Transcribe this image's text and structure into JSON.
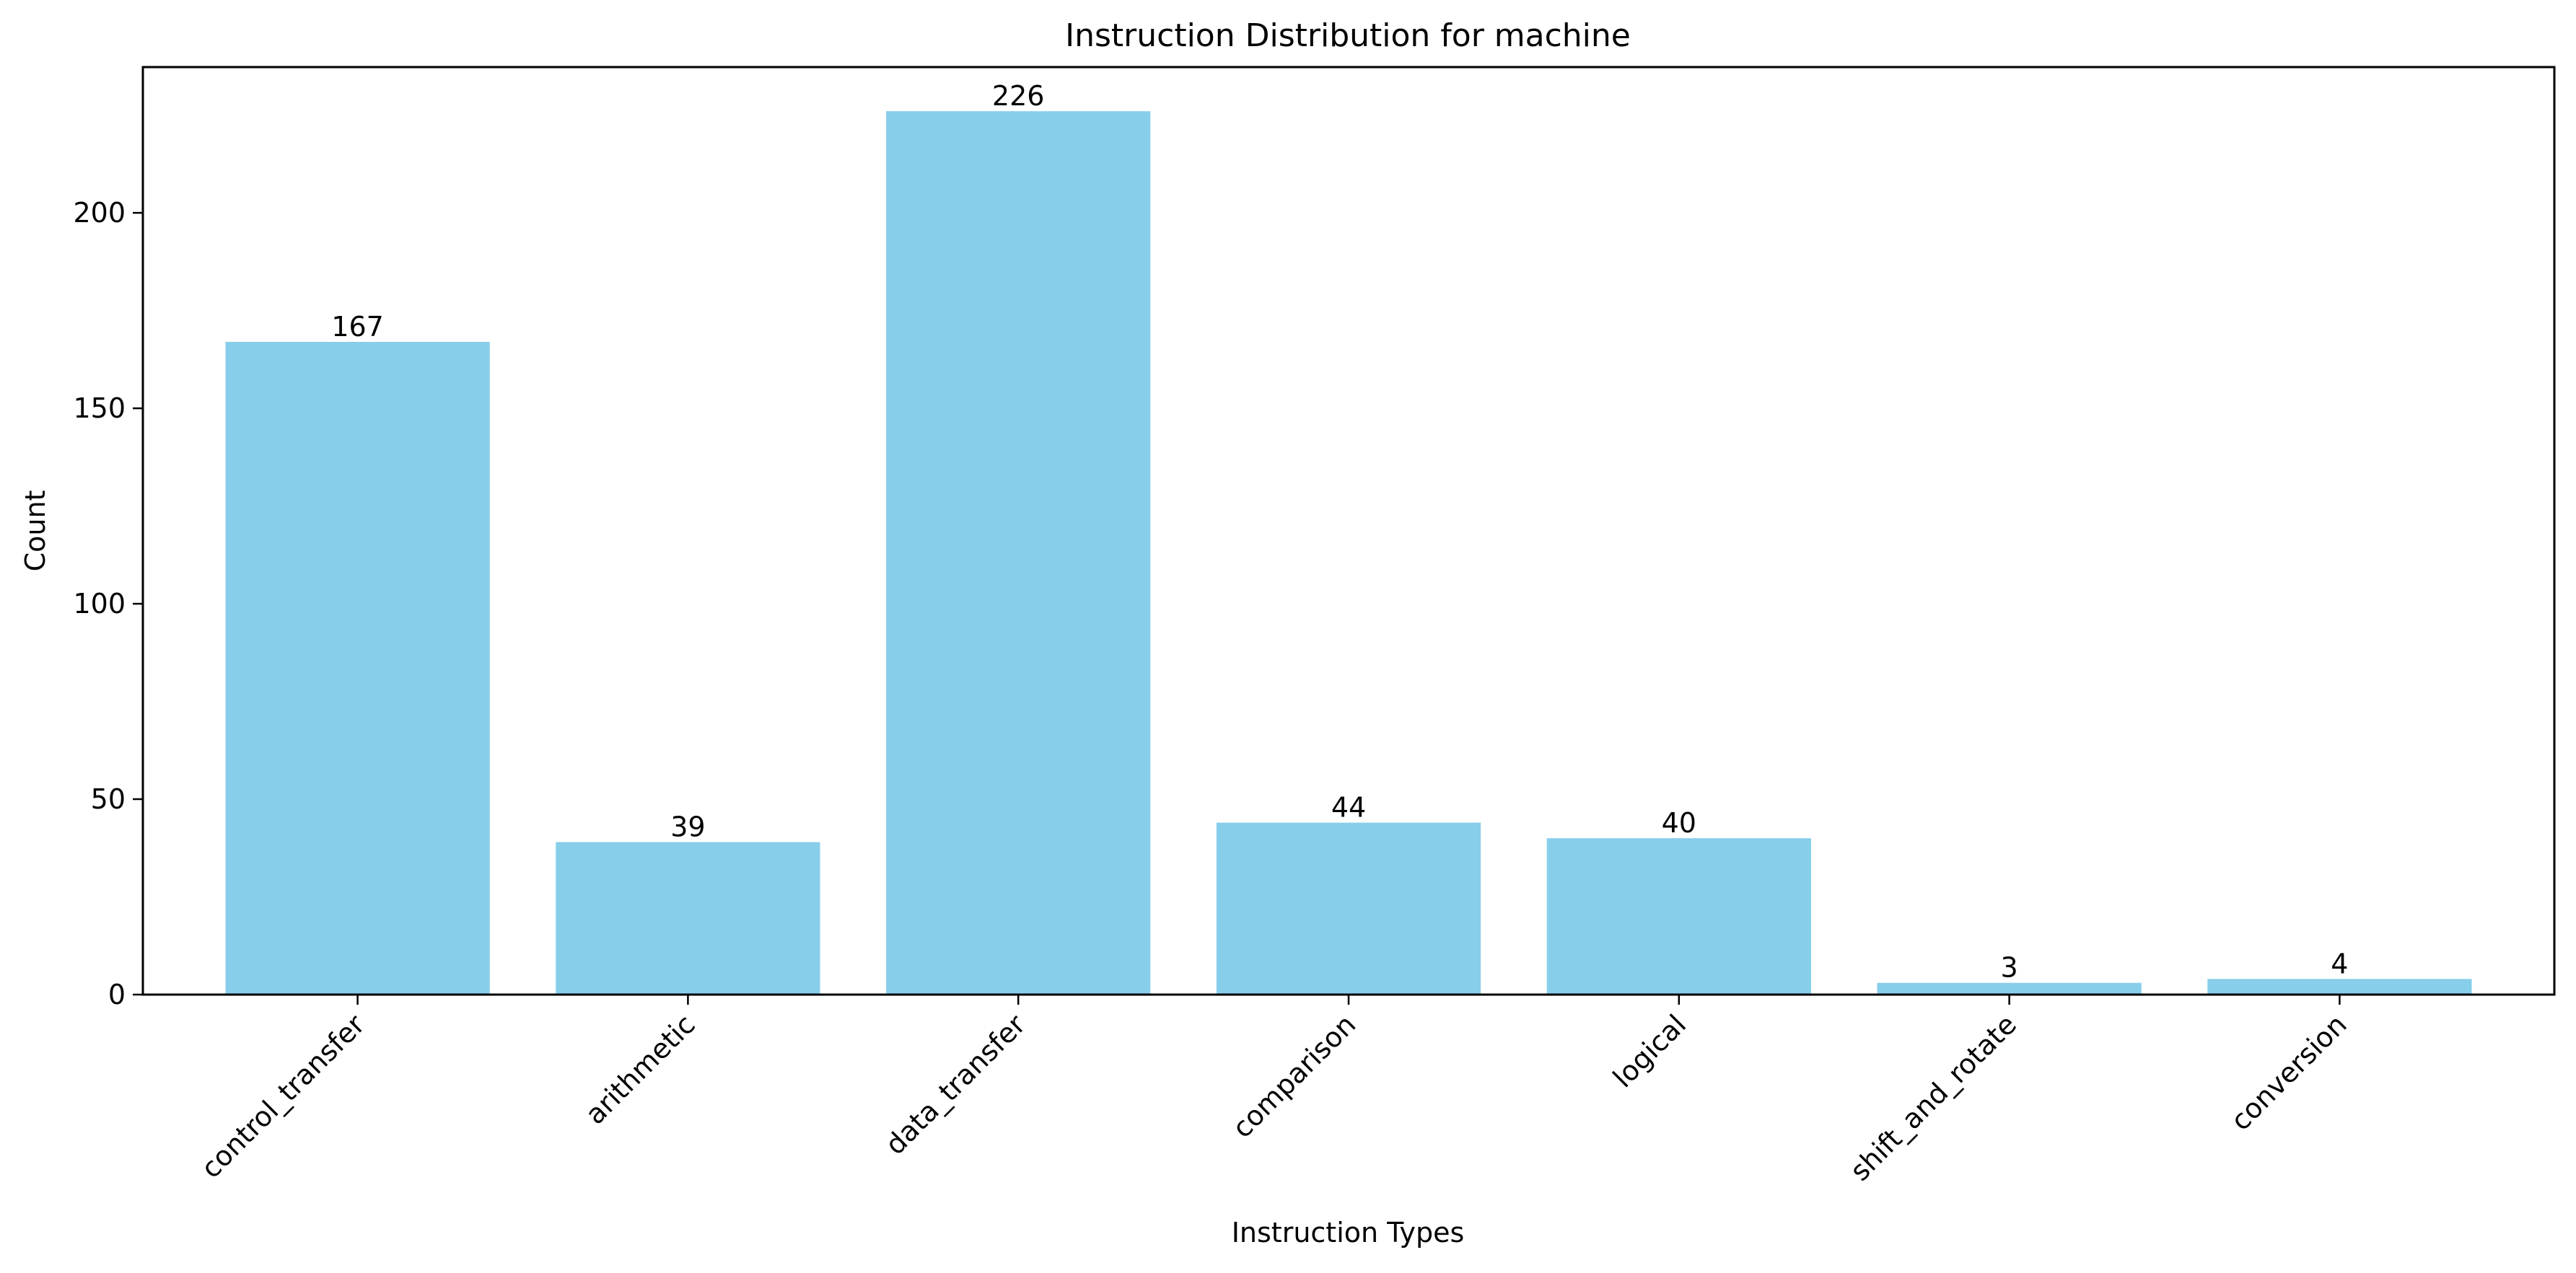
{
  "chart_data": {
    "type": "bar",
    "title": "Instruction Distribution for machine",
    "xlabel": "Instruction Types",
    "ylabel": "Count",
    "categories": [
      "control_transfer",
      "arithmetic",
      "data_transfer",
      "comparison",
      "logical",
      "shift_and_rotate",
      "conversion"
    ],
    "values": [
      167,
      39,
      226,
      44,
      40,
      3,
      4
    ],
    "data_labels": [
      "167",
      "39",
      "226",
      "44",
      "40",
      "3",
      "4"
    ],
    "ylim": [
      0,
      237.3
    ],
    "yticks": [
      0,
      50,
      100,
      150,
      200
    ],
    "ytick_labels": [
      "0",
      "50",
      "100",
      "150",
      "200"
    ],
    "bar_color": "#87CEEB",
    "grid": false,
    "legend": "none"
  }
}
